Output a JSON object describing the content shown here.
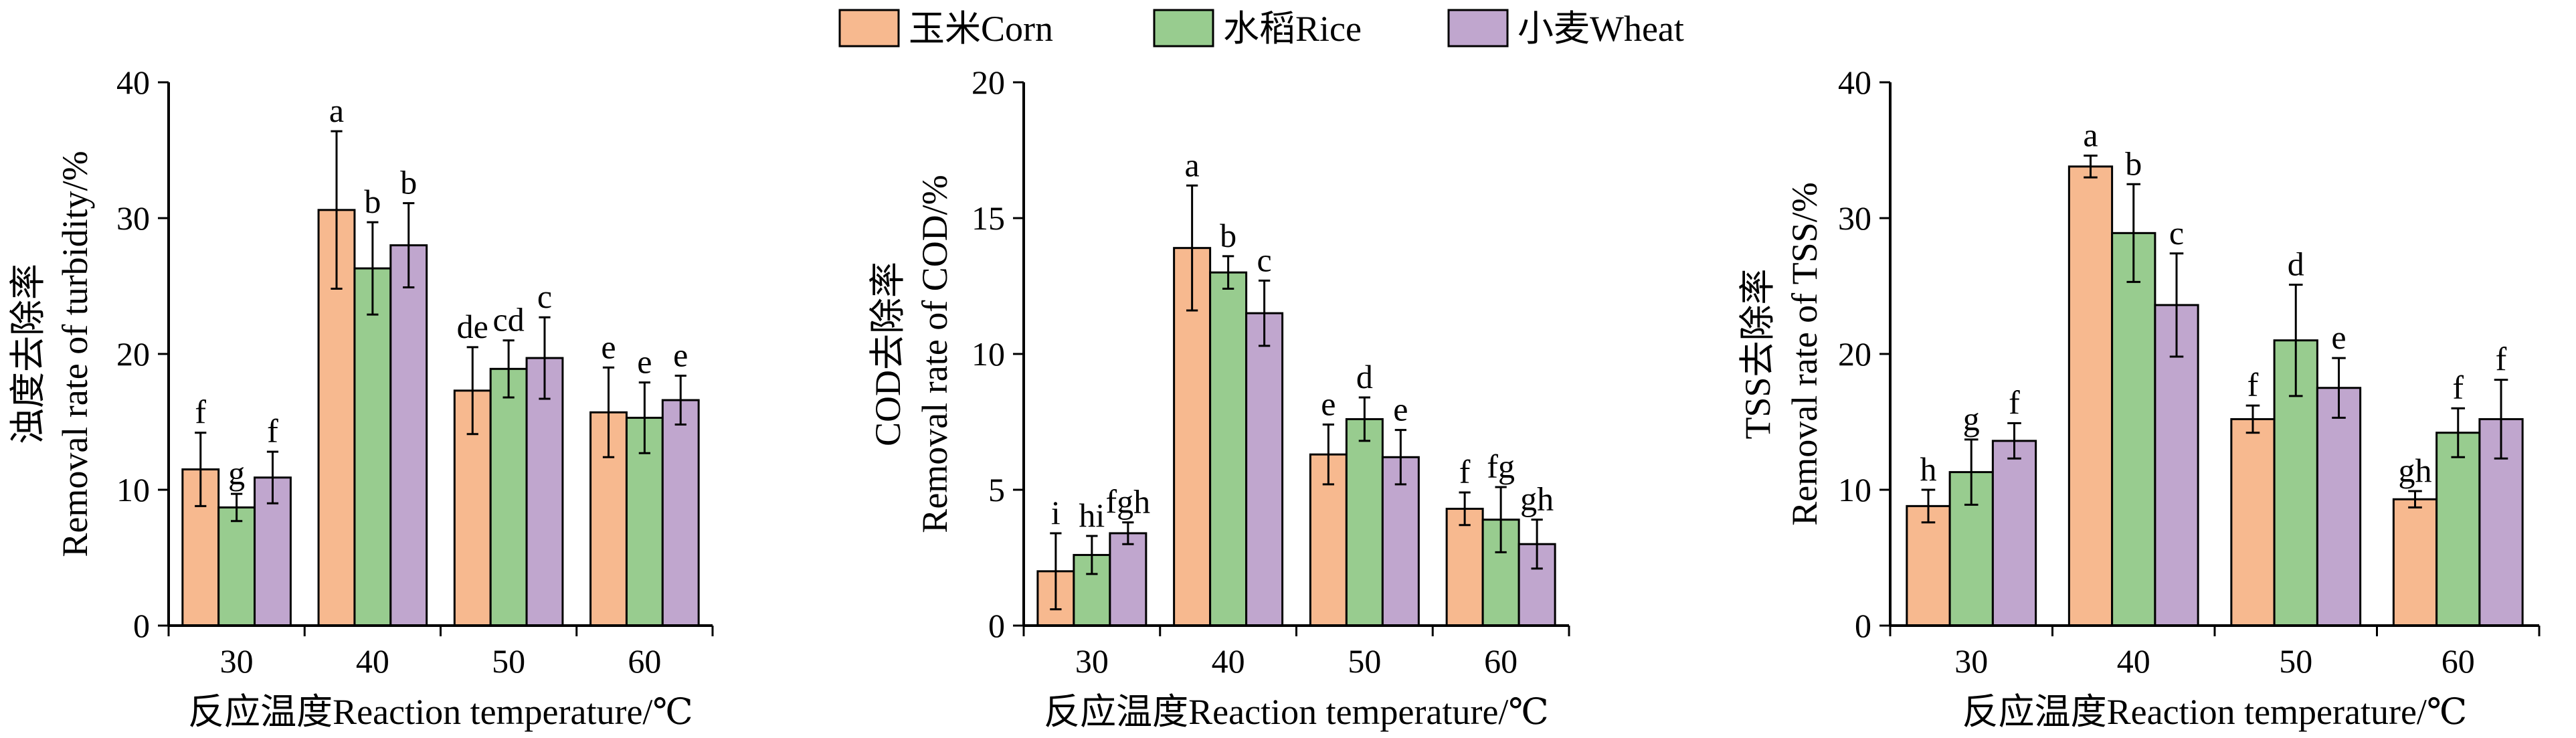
{
  "legend": {
    "placement": "top-center",
    "items": [
      {
        "label": "玉米Corn",
        "color": "#F7B98F"
      },
      {
        "label": "水稻Rice",
        "color": "#98CC8F"
      },
      {
        "label": "小麦Wheat",
        "color": "#C0A6CE"
      }
    ]
  },
  "chart_data": [
    {
      "type": "bar",
      "title": "",
      "xlabel": "反应温度Reaction temperature/℃",
      "ylabel": [
        "浊度去除率",
        "Removal rate of turbidity/%"
      ],
      "categories": [
        "30",
        "40",
        "50",
        "60"
      ],
      "ylim": [
        0,
        40
      ],
      "yticks": [
        0,
        10,
        20,
        30,
        40
      ],
      "grid": false,
      "series": [
        {
          "name": "玉米Corn",
          "values": [
            11.5,
            30.6,
            17.3,
            15.7
          ],
          "errors": [
            2.7,
            5.8,
            3.2,
            3.3
          ],
          "labels": [
            "f",
            "a",
            "de",
            "e"
          ]
        },
        {
          "name": "水稻Rice",
          "values": [
            8.7,
            26.3,
            18.9,
            15.3
          ],
          "errors": [
            1.0,
            3.4,
            2.1,
            2.6
          ],
          "labels": [
            "g",
            "b",
            "cd",
            "e"
          ]
        },
        {
          "name": "小麦Wheat",
          "values": [
            10.9,
            28.0,
            19.7,
            16.6
          ],
          "errors": [
            1.9,
            3.1,
            3.0,
            1.8
          ],
          "labels": [
            "f",
            "b",
            "c",
            "e"
          ]
        }
      ]
    },
    {
      "type": "bar",
      "title": "",
      "xlabel": "反应温度Reaction temperature/℃",
      "ylabel": [
        "COD去除率",
        "Removal rate of COD/%"
      ],
      "categories": [
        "30",
        "40",
        "50",
        "60"
      ],
      "ylim": [
        0,
        20
      ],
      "yticks": [
        0,
        5,
        10,
        15,
        20
      ],
      "grid": false,
      "series": [
        {
          "name": "玉米Corn",
          "values": [
            2.0,
            13.9,
            6.3,
            4.3
          ],
          "errors": [
            1.4,
            2.3,
            1.1,
            0.6
          ],
          "labels": [
            "i",
            "a",
            "e",
            "f"
          ]
        },
        {
          "name": "水稻Rice",
          "values": [
            2.6,
            13.0,
            7.6,
            3.9
          ],
          "errors": [
            0.7,
            0.6,
            0.8,
            1.2
          ],
          "labels": [
            "hi",
            "b",
            "d",
            "fg"
          ]
        },
        {
          "name": "小麦Wheat",
          "values": [
            3.4,
            11.5,
            6.2,
            3.0
          ],
          "errors": [
            0.4,
            1.2,
            1.0,
            0.9
          ],
          "labels": [
            "fgh",
            "c",
            "e",
            "gh"
          ]
        }
      ]
    },
    {
      "type": "bar",
      "title": "",
      "xlabel": "反应温度Reaction temperature/℃",
      "ylabel": [
        "TSS去除率",
        "Removal rate of TSS/%"
      ],
      "categories": [
        "30",
        "40",
        "50",
        "60"
      ],
      "ylim": [
        0,
        40
      ],
      "yticks": [
        0,
        10,
        20,
        30,
        40
      ],
      "grid": false,
      "series": [
        {
          "name": "玉米Corn",
          "values": [
            8.8,
            33.8,
            15.2,
            9.3
          ],
          "errors": [
            1.2,
            0.8,
            1.0,
            0.6
          ],
          "labels": [
            "h",
            "a",
            "f",
            "gh"
          ]
        },
        {
          "name": "水稻Rice",
          "values": [
            11.3,
            28.9,
            21.0,
            14.2
          ],
          "errors": [
            2.4,
            3.6,
            4.1,
            1.8
          ],
          "labels": [
            "g",
            "b",
            "d",
            "f"
          ]
        },
        {
          "name": "小麦Wheat",
          "values": [
            13.6,
            23.6,
            17.5,
            15.2
          ],
          "errors": [
            1.3,
            3.8,
            2.2,
            2.9
          ],
          "labels": [
            "f",
            "c",
            "e",
            "f"
          ]
        }
      ]
    }
  ]
}
